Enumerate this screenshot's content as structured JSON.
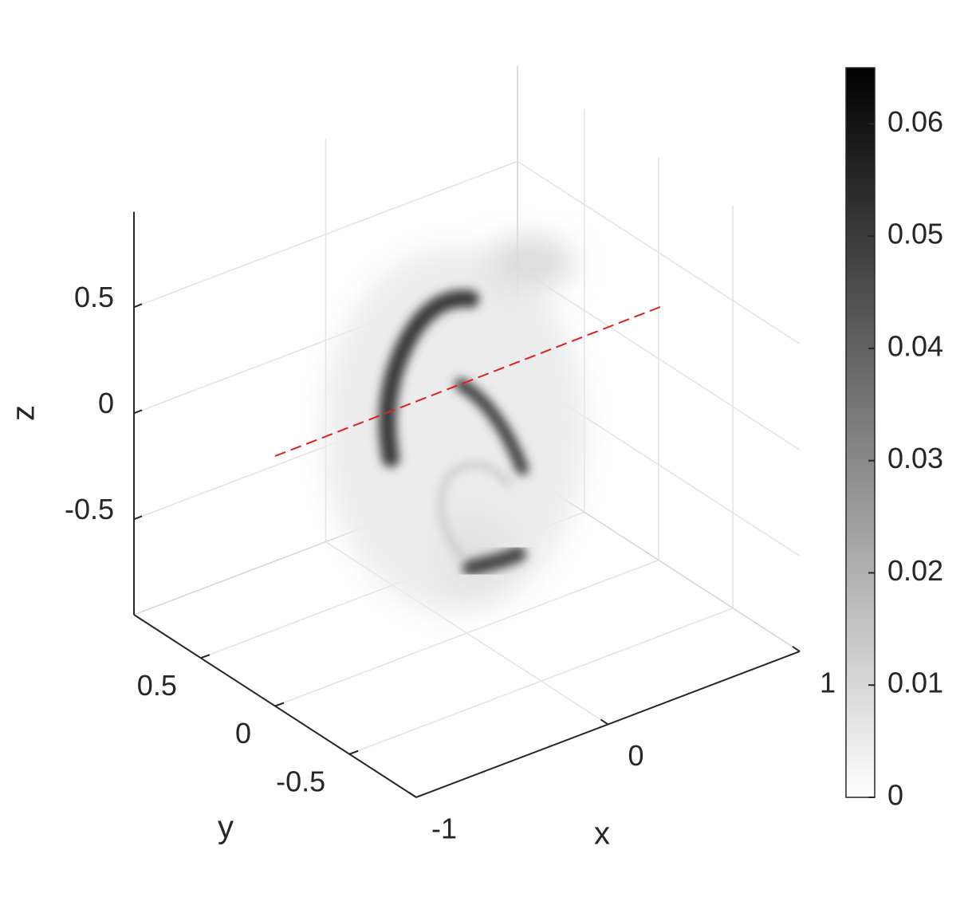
{
  "chart_data": {
    "type": "volume",
    "xlabel": "x",
    "ylabel": "y",
    "zlabel": "z",
    "xlim": [
      -1,
      1
    ],
    "xticks": [
      -1,
      0,
      1
    ],
    "ylim": [
      -0.95,
      0.95
    ],
    "yticks": [
      -0.5,
      0,
      0.5
    ],
    "zlim": [
      -0.95,
      0.95
    ],
    "zticks": [
      -0.5,
      0,
      0.5
    ],
    "grid": true,
    "colorbar": {
      "clim": [
        0,
        0.065
      ],
      "ticks": [
        0,
        0.01,
        0.02,
        0.03,
        0.04,
        0.05,
        0.06
      ],
      "colormap": [
        "#ffffff",
        "#000000"
      ]
    }
  }
}
